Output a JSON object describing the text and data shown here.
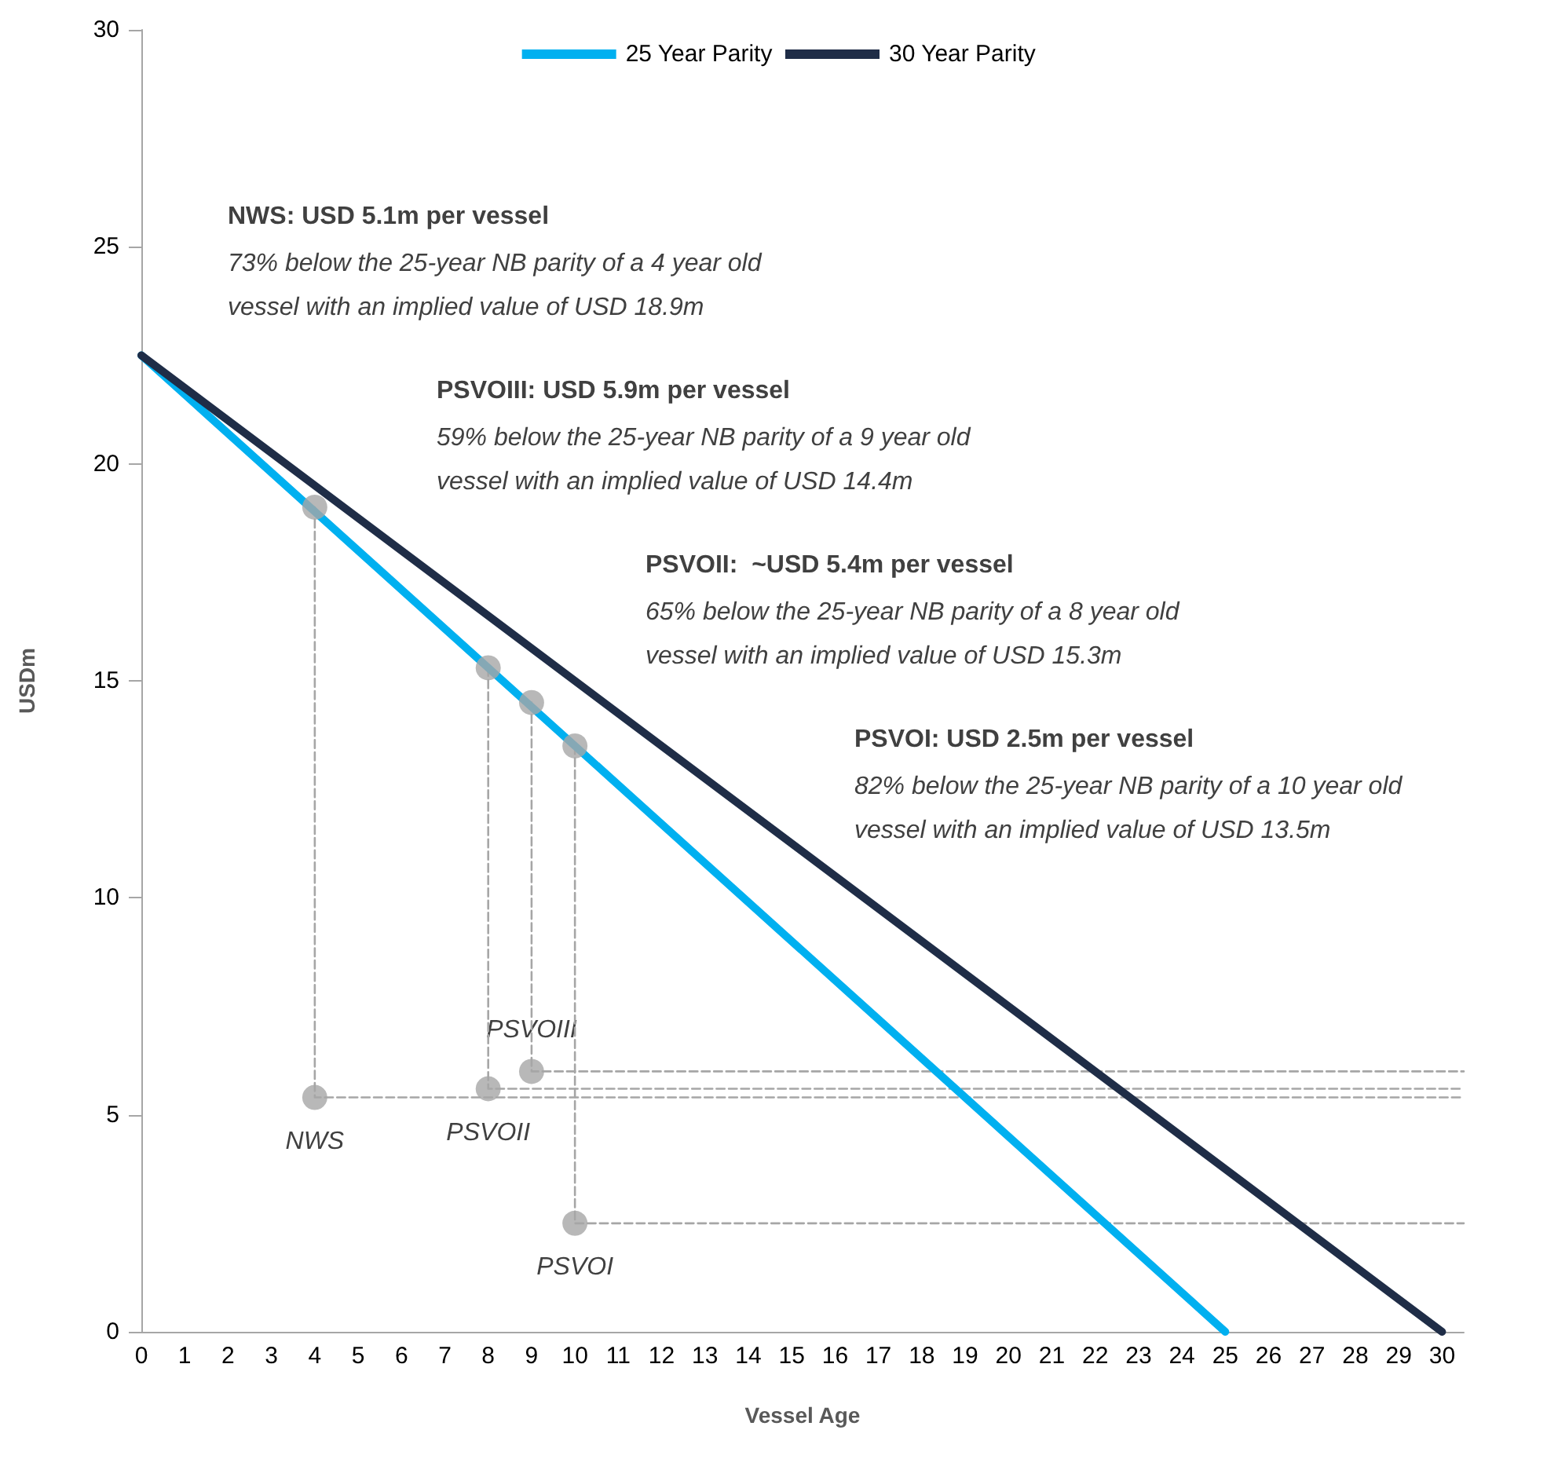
{
  "chart_data": {
    "type": "line",
    "xlabel": "Vessel Age",
    "ylabel": "USDm",
    "xlim": [
      0,
      30.5
    ],
    "xticks": [
      0,
      1,
      2,
      3,
      4,
      5,
      6,
      7,
      8,
      9,
      10,
      11,
      12,
      13,
      14,
      15,
      16,
      17,
      18,
      19,
      20,
      21,
      22,
      23,
      24,
      25,
      26,
      27,
      28,
      29,
      30
    ],
    "ylim": [
      0,
      30
    ],
    "yticks": [
      0,
      5,
      10,
      15,
      20,
      25,
      30
    ],
    "grid": false,
    "legend": "top",
    "marker": "none",
    "series": [
      {
        "name": "25 Year Parity",
        "color": "#00b0f0",
        "x": [
          0,
          25
        ],
        "values": [
          22.5,
          0
        ]
      },
      {
        "name": "30 Year Parity",
        "color": "#1f2d47",
        "x": [
          0,
          30
        ],
        "values": [
          22.5,
          0
        ]
      },
      {
        "color": "#a6a6a6",
        "line_style": "dashed",
        "x": [
          4,
          4,
          30.5
        ],
        "values": [
          19.0,
          5.4,
          5.4
        ]
      },
      {
        "color": "#a6a6a6",
        "line_style": "dashed",
        "x": [
          8,
          8,
          30.5
        ],
        "values": [
          15.3,
          5.6,
          5.6
        ]
      },
      {
        "color": "#a6a6a6",
        "line_style": "dashed",
        "x": [
          9,
          9,
          30.5
        ],
        "values": [
          14.5,
          6.0,
          6.0
        ]
      },
      {
        "color": "#a6a6a6",
        "line_style": "dashed",
        "x": [
          10,
          10,
          30.5
        ],
        "values": [
          13.5,
          2.5,
          2.5
        ]
      },
      {
        "type": "scatter",
        "color": "#a6a6a6",
        "marker": "circle",
        "x": [
          4,
          8,
          9,
          10
        ],
        "values": [
          19.0,
          15.3,
          14.5,
          13.5
        ]
      },
      {
        "type": "scatter",
        "color": "#a6a6a6",
        "marker": "circle",
        "x": [
          4,
          8,
          9,
          10
        ],
        "values": [
          5.4,
          5.6,
          6.0,
          2.5
        ]
      }
    ],
    "annotations": [
      "NWS: USD 5.1m per vessel\n73% below the 25-year NB parity of a 4 year old\nvessel with an implied value of USD 18.9m",
      "PSVOIII: USD 5.9m per vessel\n59% below the 25-year NB parity of a 9 year old\nvessel with an implied value of USD 14.4m",
      "PSVOII:  ~USD 5.4m per vessel\n65% below the 25-year NB parity of a 8 year old\nvessel with an implied value of USD 15.3m",
      "PSVOI: USD 2.5m per vessel\n82% below the 25-year NB parity of a 10 year old\nvessel with an implied value of USD 13.5m",
      {
        "text": "NWS",
        "x": 4,
        "y": 5.4
      },
      {
        "text": "PSVOII",
        "x": 8,
        "y": 5.6
      },
      {
        "text": "PSVOIII",
        "x": 9,
        "y": 6.0
      },
      {
        "text": "PSVOI",
        "x": 10,
        "y": 2.5
      }
    ]
  }
}
